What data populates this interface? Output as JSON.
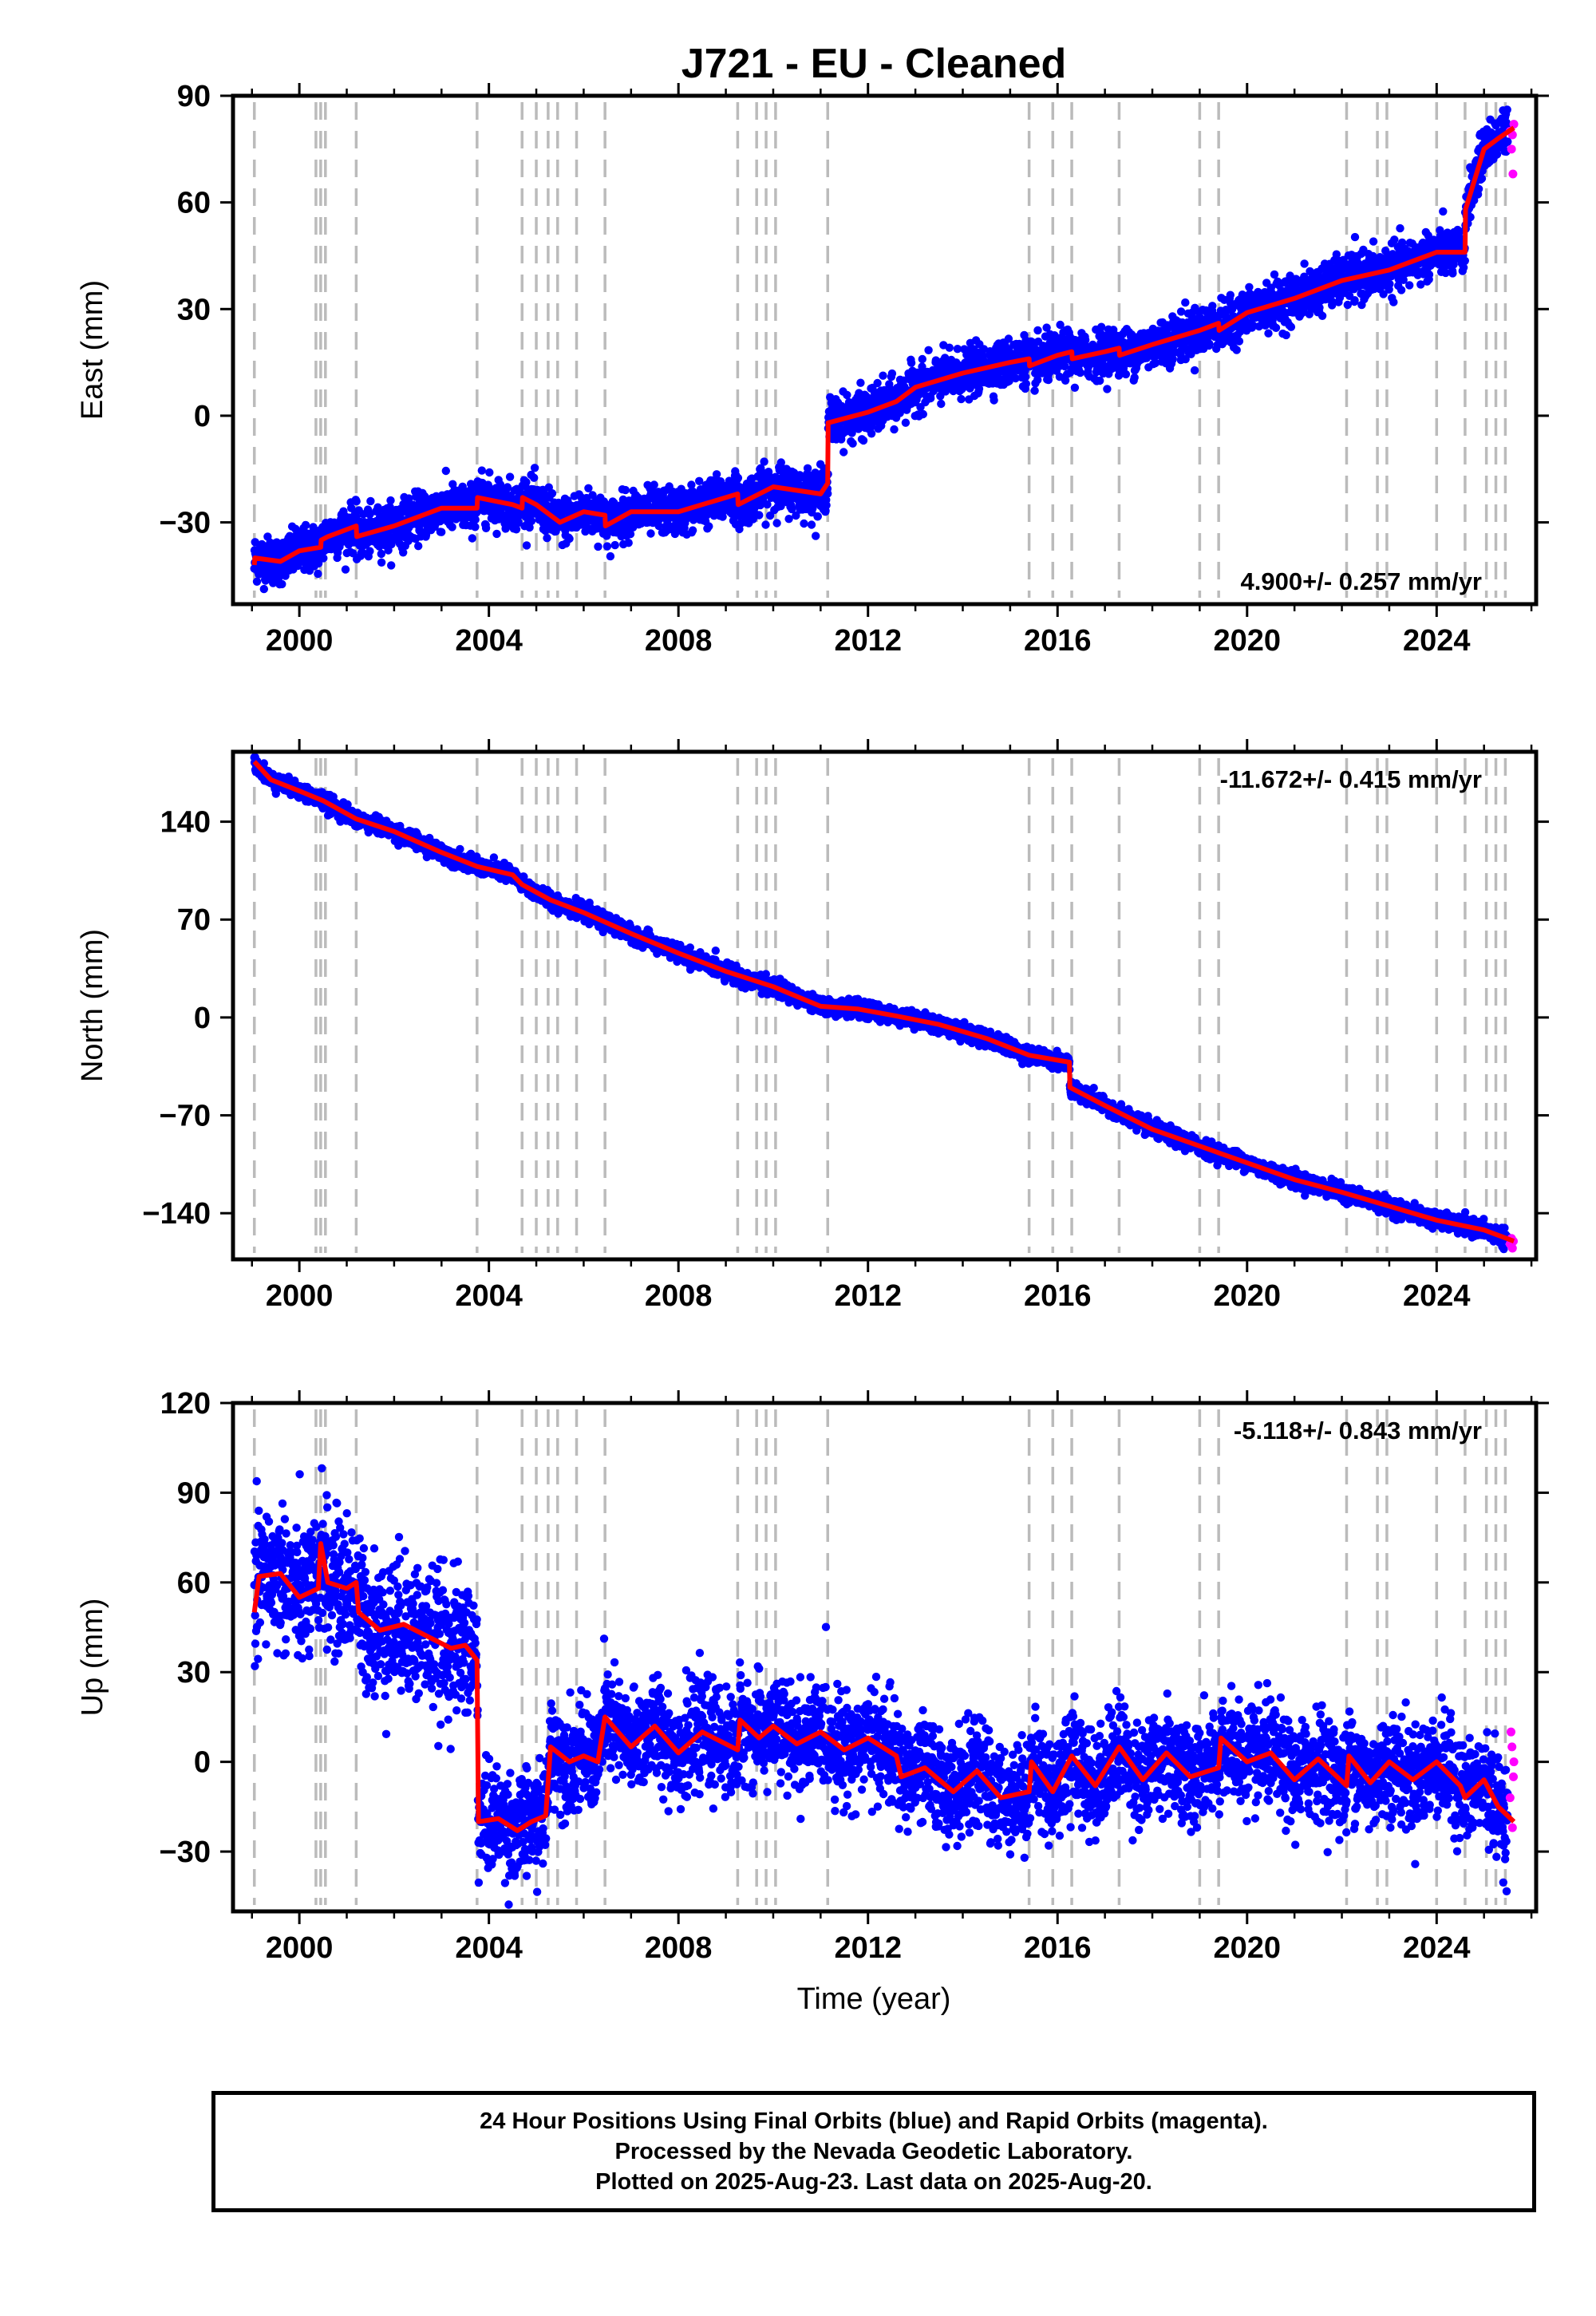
{
  "title": "J721  - EU - Cleaned",
  "x_axis_label": "Time (year)",
  "colors": {
    "final_orbits": "#0000ff",
    "rapid_orbits": "#ff00ff",
    "model": "#ff0000",
    "event_lines": "#bbbbbb",
    "frame": "#000000"
  },
  "caption": [
    "24 Hour Positions Using Final Orbits (blue) and Rapid Orbits (magenta).",
    "Processed by the Nevada Geodetic Laboratory.",
    "Plotted on 2025-Aug-23. Last data on 2025-Aug-20."
  ],
  "chart_data": [
    {
      "type": "scatter",
      "name": "East",
      "ylabel": "East (mm)",
      "xlim": [
        1998.6,
        2026.1
      ],
      "ylim": [
        -53,
        90
      ],
      "x_ticks": [
        2000,
        2004,
        2008,
        2012,
        2016,
        2020,
        2024
      ],
      "x_tick_labels": [
        "2000",
        "2004",
        "2008",
        "2012",
        "2016",
        "2020",
        "2024"
      ],
      "y_ticks": [
        90,
        60,
        30,
        0,
        -30
      ],
      "y_tick_labels": [
        "90",
        "60",
        "30",
        "0",
        "−30"
      ],
      "rate_label": "4.900+/- 0.257 mm/yr",
      "rate_label_position": "bottom-right",
      "noise_mm": 3.2,
      "model": [
        [
          1999.05,
          -42
        ],
        [
          1999.06,
          -40
        ],
        [
          1999.6,
          -41
        ],
        [
          2000.0,
          -38
        ],
        [
          2000.45,
          -37
        ],
        [
          2000.46,
          -35
        ],
        [
          2000.6,
          -34
        ],
        [
          2001.0,
          -32
        ],
        [
          2001.2,
          -31
        ],
        [
          2001.21,
          -34
        ],
        [
          2002.0,
          -31
        ],
        [
          2003.0,
          -26
        ],
        [
          2003.75,
          -26
        ],
        [
          2003.76,
          -23
        ],
        [
          2004.5,
          -25
        ],
        [
          2004.7,
          -26
        ],
        [
          2004.71,
          -23
        ],
        [
          2005.0,
          -25
        ],
        [
          2005.5,
          -30
        ],
        [
          2006.0,
          -27
        ],
        [
          2006.45,
          -28
        ],
        [
          2006.46,
          -31
        ],
        [
          2007.0,
          -27
        ],
        [
          2008.0,
          -27
        ],
        [
          2009.0,
          -23
        ],
        [
          2009.25,
          -22
        ],
        [
          2009.26,
          -25
        ],
        [
          2010.0,
          -20
        ],
        [
          2011.0,
          -22
        ],
        [
          2011.15,
          -19
        ],
        [
          2011.16,
          -2
        ],
        [
          2012.0,
          1
        ],
        [
          2012.6,
          4
        ],
        [
          2013.0,
          8
        ],
        [
          2014.0,
          12
        ],
        [
          2015.0,
          15
        ],
        [
          2015.4,
          16
        ],
        [
          2015.41,
          14
        ],
        [
          2016.0,
          17
        ],
        [
          2016.3,
          18
        ],
        [
          2016.31,
          16
        ],
        [
          2017.0,
          18
        ],
        [
          2017.3,
          19
        ],
        [
          2017.31,
          17
        ],
        [
          2018.0,
          20
        ],
        [
          2019.0,
          24
        ],
        [
          2019.4,
          26
        ],
        [
          2019.41,
          24
        ],
        [
          2020.0,
          29
        ],
        [
          2021.0,
          33
        ],
        [
          2022.0,
          38
        ],
        [
          2023.0,
          41
        ],
        [
          2024.0,
          46
        ],
        [
          2024.6,
          46
        ],
        [
          2024.61,
          58
        ],
        [
          2025.0,
          75
        ],
        [
          2025.3,
          78
        ],
        [
          2025.63,
          81
        ]
      ],
      "rapid_orbit_points": [
        [
          2025.55,
          80
        ],
        [
          2025.58,
          75
        ],
        [
          2025.6,
          79
        ],
        [
          2025.61,
          68
        ],
        [
          2025.63,
          82
        ]
      ],
      "event_lines": [
        1999.05,
        2000.35,
        2000.45,
        2000.55,
        2001.2,
        2003.75,
        2004.7,
        2005.0,
        2005.25,
        2005.45,
        2005.85,
        2006.45,
        2009.25,
        2009.65,
        2009.85,
        2010.05,
        2011.15,
        2015.4,
        2015.9,
        2016.3,
        2017.3,
        2019.0,
        2019.4,
        2022.1,
        2022.75,
        2022.95,
        2024.0,
        2024.6,
        2025.05,
        2025.25,
        2025.45
      ]
    },
    {
      "type": "scatter",
      "name": "North",
      "ylabel": "North (mm)",
      "xlim": [
        1998.6,
        2026.1
      ],
      "ylim": [
        -173,
        190
      ],
      "x_ticks": [
        2000,
        2004,
        2008,
        2012,
        2016,
        2020,
        2024
      ],
      "x_tick_labels": [
        "2000",
        "2004",
        "2008",
        "2012",
        "2016",
        "2020",
        "2024"
      ],
      "y_ticks": [
        140,
        70,
        0,
        -70,
        -140
      ],
      "y_tick_labels": [
        "140",
        "70",
        "0",
        "−70",
        "−140"
      ],
      "rate_label": "-11.672+/- 0.415 mm/yr",
      "rate_label_position": "top-right",
      "noise_mm": 2.8,
      "model": [
        [
          1999.05,
          183
        ],
        [
          1999.4,
          170
        ],
        [
          2000.0,
          162
        ],
        [
          2000.5,
          155
        ],
        [
          2001.2,
          142
        ],
        [
          2002.0,
          133
        ],
        [
          2003.0,
          118
        ],
        [
          2003.75,
          108
        ],
        [
          2004.5,
          102
        ],
        [
          2004.7,
          95
        ],
        [
          2005.3,
          84
        ],
        [
          2006.0,
          75
        ],
        [
          2007.0,
          60
        ],
        [
          2008.0,
          46
        ],
        [
          2009.0,
          33
        ],
        [
          2010.0,
          22
        ],
        [
          2011.0,
          8
        ],
        [
          2011.8,
          6
        ],
        [
          2012.6,
          1
        ],
        [
          2013.5,
          -5
        ],
        [
          2014.5,
          -15
        ],
        [
          2015.4,
          -27
        ],
        [
          2016.25,
          -32
        ],
        [
          2016.26,
          -50
        ],
        [
          2017.0,
          -63
        ],
        [
          2018.0,
          -80
        ],
        [
          2019.0,
          -92
        ],
        [
          2020.0,
          -104
        ],
        [
          2021.0,
          -116
        ],
        [
          2022.0,
          -125
        ],
        [
          2023.0,
          -135
        ],
        [
          2024.0,
          -145
        ],
        [
          2025.0,
          -152
        ],
        [
          2025.63,
          -160
        ]
      ],
      "rapid_orbit_points": [
        [
          2025.55,
          -162
        ],
        [
          2025.58,
          -158
        ],
        [
          2025.6,
          -165
        ],
        [
          2025.62,
          -160
        ]
      ],
      "event_lines": [
        1999.05,
        2000.35,
        2000.45,
        2000.55,
        2001.2,
        2003.75,
        2004.7,
        2005.0,
        2005.25,
        2005.45,
        2005.85,
        2006.45,
        2009.25,
        2009.65,
        2009.85,
        2010.05,
        2011.15,
        2015.4,
        2015.9,
        2016.3,
        2017.3,
        2019.0,
        2019.4,
        2022.1,
        2022.75,
        2022.95,
        2024.0,
        2024.6,
        2025.05,
        2025.25,
        2025.45
      ]
    },
    {
      "type": "scatter",
      "name": "Up",
      "ylabel": "Up (mm)",
      "xlim": [
        1998.6,
        2026.1
      ],
      "ylim": [
        -50,
        120
      ],
      "x_ticks": [
        2000,
        2004,
        2008,
        2012,
        2016,
        2020,
        2024
      ],
      "x_tick_labels": [
        "2000",
        "2004",
        "2008",
        "2012",
        "2016",
        "2020",
        "2024"
      ],
      "y_ticks": [
        120,
        90,
        60,
        30,
        0,
        -30
      ],
      "y_tick_labels": [
        "120",
        "90",
        "60",
        "30",
        "0",
        "−30"
      ],
      "rate_label": "-5.118+/- 0.843 mm/yr",
      "rate_label_position": "top-right",
      "noise_mm": 8.5,
      "model": [
        [
          1999.05,
          50
        ],
        [
          1999.15,
          62
        ],
        [
          1999.6,
          63
        ],
        [
          2000.0,
          55
        ],
        [
          2000.4,
          58
        ],
        [
          2000.45,
          73
        ],
        [
          2000.6,
          60
        ],
        [
          2001.0,
          58
        ],
        [
          2001.2,
          60
        ],
        [
          2001.25,
          50
        ],
        [
          2001.7,
          44
        ],
        [
          2002.2,
          46
        ],
        [
          2002.7,
          42
        ],
        [
          2003.2,
          38
        ],
        [
          2003.5,
          39
        ],
        [
          2003.75,
          34
        ],
        [
          2003.78,
          -20
        ],
        [
          2004.2,
          -19
        ],
        [
          2004.6,
          -23
        ],
        [
          2004.9,
          -20
        ],
        [
          2005.2,
          -18
        ],
        [
          2005.3,
          5
        ],
        [
          2005.7,
          0
        ],
        [
          2006.0,
          2
        ],
        [
          2006.3,
          0
        ],
        [
          2006.45,
          15
        ],
        [
          2007.0,
          5
        ],
        [
          2007.5,
          12
        ],
        [
          2008.0,
          3
        ],
        [
          2008.5,
          10
        ],
        [
          2009.25,
          4
        ],
        [
          2009.3,
          14
        ],
        [
          2009.7,
          8
        ],
        [
          2010.0,
          12
        ],
        [
          2010.5,
          6
        ],
        [
          2011.0,
          10
        ],
        [
          2011.5,
          4
        ],
        [
          2012.0,
          8
        ],
        [
          2012.6,
          2
        ],
        [
          2012.7,
          -5
        ],
        [
          2013.2,
          -2
        ],
        [
          2013.8,
          -10
        ],
        [
          2014.3,
          -3
        ],
        [
          2014.8,
          -12
        ],
        [
          2015.4,
          -10
        ],
        [
          2015.45,
          0
        ],
        [
          2015.9,
          -10
        ],
        [
          2016.3,
          2
        ],
        [
          2016.8,
          -8
        ],
        [
          2017.3,
          5
        ],
        [
          2017.8,
          -6
        ],
        [
          2018.3,
          3
        ],
        [
          2018.8,
          -5
        ],
        [
          2019.4,
          -2
        ],
        [
          2019.45,
          8
        ],
        [
          2020.0,
          0
        ],
        [
          2020.5,
          3
        ],
        [
          2021.0,
          -6
        ],
        [
          2021.5,
          1
        ],
        [
          2022.1,
          -8
        ],
        [
          2022.15,
          2
        ],
        [
          2022.6,
          -7
        ],
        [
          2023.0,
          0
        ],
        [
          2023.5,
          -6
        ],
        [
          2024.0,
          0
        ],
        [
          2024.5,
          -8
        ],
        [
          2024.6,
          -12
        ],
        [
          2025.0,
          -6
        ],
        [
          2025.3,
          -15
        ],
        [
          2025.63,
          -20
        ]
      ],
      "rapid_orbit_points": [
        [
          2025.55,
          -12
        ],
        [
          2025.57,
          10
        ],
        [
          2025.59,
          5
        ],
        [
          2025.6,
          -22
        ],
        [
          2025.62,
          -5
        ],
        [
          2025.63,
          0
        ]
      ],
      "event_lines": [
        1999.05,
        2000.35,
        2000.45,
        2000.55,
        2001.2,
        2003.75,
        2004.7,
        2005.0,
        2005.25,
        2005.45,
        2005.85,
        2006.45,
        2009.25,
        2009.65,
        2009.85,
        2010.05,
        2011.15,
        2015.4,
        2015.9,
        2016.3,
        2017.3,
        2019.0,
        2019.4,
        2022.1,
        2022.75,
        2022.95,
        2024.0,
        2024.6,
        2025.05,
        2025.25,
        2025.45
      ]
    }
  ]
}
